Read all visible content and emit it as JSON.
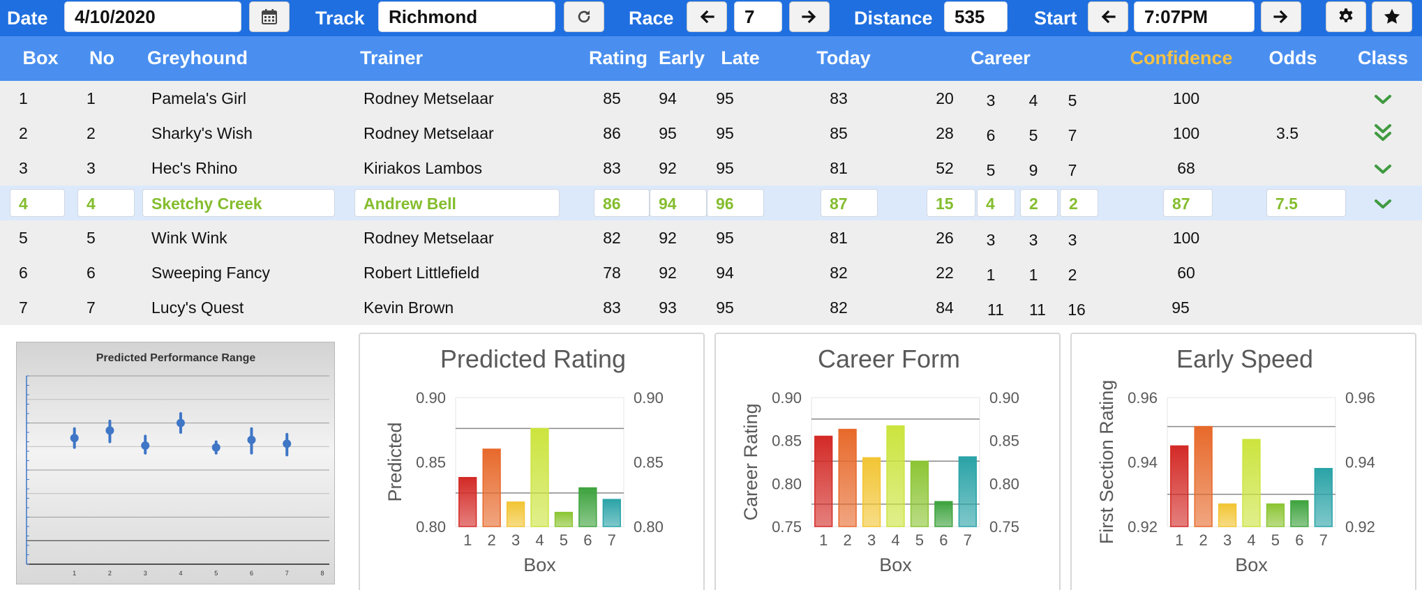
{
  "toolbar": {
    "date_label": "Date",
    "date_value": "4/10/2020",
    "track_label": "Track",
    "track_value": "Richmond",
    "race_label": "Race",
    "race_value": "7",
    "distance_label": "Distance",
    "distance_value": "535",
    "start_label": "Start",
    "start_value": "7:07PM"
  },
  "columns": {
    "box": "Box",
    "no": "No",
    "greyhound": "Greyhound",
    "trainer": "Trainer",
    "rating": "Rating",
    "early": "Early",
    "late": "Late",
    "today": "Today",
    "career": "Career",
    "confidence": "Confidence",
    "odds": "Odds",
    "class": "Class"
  },
  "colors": {
    "toolbar": "#1f6fe0",
    "header": "#4a8ff0",
    "confidence_header": "#f6c244",
    "selected_text": "#84bd2e",
    "selected_row": "#dce9fb",
    "chevron": "#3f9a40"
  },
  "runners": [
    {
      "box": "1",
      "no": "1",
      "greyhound": "Pamela's Girl",
      "trainer": "Rodney Metselaar",
      "rating": "85",
      "early": "94",
      "late": "95",
      "today": "83",
      "career": [
        "20",
        "3",
        "4",
        "5"
      ],
      "confidence": "100",
      "odds": "",
      "class_icon": "chevron-down-icon"
    },
    {
      "box": "2",
      "no": "2",
      "greyhound": "Sharky's Wish",
      "trainer": "Rodney Metselaar",
      "rating": "86",
      "early": "95",
      "late": "95",
      "today": "85",
      "career": [
        "28",
        "6",
        "5",
        "7"
      ],
      "confidence": "100",
      "odds": "3.5",
      "class_icon": "double-chevron-down-icon"
    },
    {
      "box": "3",
      "no": "3",
      "greyhound": "Hec's Rhino",
      "trainer": "Kiriakos Lambos",
      "rating": "83",
      "early": "92",
      "late": "95",
      "today": "81",
      "career": [
        "52",
        "5",
        "9",
        "7"
      ],
      "confidence": "68",
      "odds": "",
      "class_icon": "chevron-down-icon"
    },
    {
      "box": "4",
      "no": "4",
      "greyhound": "Sketchy Creek",
      "trainer": "Andrew Bell",
      "rating": "86",
      "early": "94",
      "late": "96",
      "today": "87",
      "career": [
        "15",
        "4",
        "2",
        "2"
      ],
      "confidence": "87",
      "odds": "7.5",
      "class_icon": "chevron-down-icon"
    },
    {
      "box": "5",
      "no": "5",
      "greyhound": "Wink Wink",
      "trainer": "Rodney Metselaar",
      "rating": "82",
      "early": "92",
      "late": "95",
      "today": "81",
      "career": [
        "26",
        "3",
        "3",
        "3"
      ],
      "confidence": "100",
      "odds": "",
      "class_icon": ""
    },
    {
      "box": "6",
      "no": "6",
      "greyhound": "Sweeping Fancy",
      "trainer": "Robert Littlefield",
      "rating": "78",
      "early": "92",
      "late": "94",
      "today": "82",
      "career": [
        "22",
        "1",
        "1",
        "2"
      ],
      "confidence": "60",
      "odds": "",
      "class_icon": ""
    },
    {
      "box": "7",
      "no": "7",
      "greyhound": "Lucy's Quest",
      "trainer": "Kevin Brown",
      "rating": "83",
      "early": "93",
      "late": "95",
      "today": "82",
      "career": [
        "84",
        "11",
        "11",
        "16"
      ],
      "confidence": "95",
      "odds": "",
      "class_icon": ""
    }
  ],
  "chart_data": [
    {
      "type": "scatter",
      "title": "Predicted Performance Range",
      "x": [
        1,
        2,
        3,
        4,
        5,
        6,
        7
      ],
      "y": [
        0.67,
        0.71,
        0.63,
        0.75,
        0.62,
        0.66,
        0.64
      ],
      "y_low": [
        0.62,
        0.65,
        0.59,
        0.7,
        0.59,
        0.59,
        0.58
      ],
      "y_high": [
        0.72,
        0.76,
        0.68,
        0.8,
        0.65,
        0.72,
        0.69
      ],
      "xticks": [
        "1",
        "2",
        "3",
        "4",
        "5",
        "6",
        "7",
        "8"
      ],
      "xlim": [
        0,
        8
      ],
      "ylim": [
        0,
        1
      ],
      "grid": true,
      "legend": "none",
      "color": "#3f76c6"
    },
    {
      "type": "bar",
      "title": "Predicted Rating",
      "xlabel": "Box",
      "ylabel": "Predicted",
      "categories": [
        "1",
        "2",
        "3",
        "4",
        "5",
        "6",
        "7"
      ],
      "values": [
        0.838,
        0.86,
        0.819,
        0.876,
        0.811,
        0.83,
        0.821
      ],
      "ylim": [
        0.8,
        0.9
      ],
      "yticks": [
        "0.80",
        "0.85",
        "0.90"
      ],
      "reference_lines": [
        0.876,
        0.826
      ],
      "secondary_axis": true,
      "colors": [
        "#d32a26",
        "#e7692b",
        "#f2c534",
        "#cce43e",
        "#8cc534",
        "#3ea33e",
        "#2aa3a7"
      ]
    },
    {
      "type": "bar",
      "title": "Career Form",
      "xlabel": "Box",
      "ylabel": "Career Rating",
      "categories": [
        "1",
        "2",
        "3",
        "4",
        "5",
        "6",
        "7"
      ],
      "values": [
        0.855,
        0.863,
        0.83,
        0.867,
        0.826,
        0.779,
        0.831
      ],
      "ylim": [
        0.75,
        0.9
      ],
      "yticks": [
        "0.75",
        "0.80",
        "0.85",
        "0.90"
      ],
      "reference_lines": [
        0.875,
        0.826,
        0.776
      ],
      "secondary_axis": true,
      "colors": [
        "#d32a26",
        "#e7692b",
        "#f2c534",
        "#cce43e",
        "#8cc534",
        "#3ea33e",
        "#2aa3a7"
      ]
    },
    {
      "type": "bar",
      "title": "Early Speed",
      "xlabel": "Box",
      "ylabel": "First Section Rating",
      "categories": [
        "1",
        "2",
        "3",
        "4",
        "5",
        "6",
        "7"
      ],
      "values": [
        0.945,
        0.951,
        0.927,
        0.947,
        0.927,
        0.928,
        0.938
      ],
      "ylim": [
        0.92,
        0.96
      ],
      "yticks": [
        "0.92",
        "0.94",
        "0.96"
      ],
      "reference_lines": [
        0.951,
        0.93
      ],
      "secondary_axis": true,
      "colors": [
        "#d32a26",
        "#e7692b",
        "#f2c534",
        "#cce43e",
        "#8cc534",
        "#3ea33e",
        "#2aa3a7"
      ]
    }
  ]
}
